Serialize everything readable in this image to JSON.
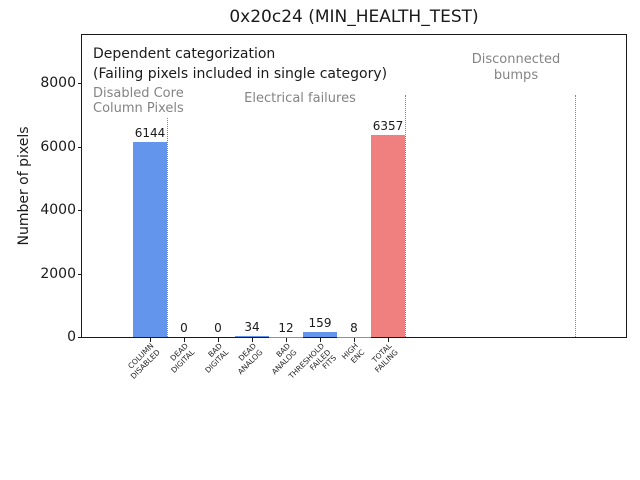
{
  "title": "0x20c24 (MIN_HEALTH_TEST)",
  "ylabel": "Number of pixels",
  "annotations": {
    "dependent": "Dependent categorization\n(Failing pixels included in single category)",
    "regions": [
      {
        "label": "Disabled Core\nColumn Pixels"
      },
      {
        "label": "Electrical failures"
      },
      {
        "label": "Disconnected\nbumps"
      }
    ]
  },
  "colors": {
    "bar_blue": "#6495ED",
    "bar_red": "#F08080",
    "annotation_gray": "#848484",
    "separator_gray": "#848484",
    "axis_text": "#1a1a1a"
  },
  "chart_data": {
    "type": "bar",
    "title": "0x20c24 (MIN_HEALTH_TEST)",
    "xlabel": "",
    "ylabel": "Number of pixels",
    "categories": [
      [
        "COLUMN",
        "DISABLED"
      ],
      [
        "DEAD",
        "DIGITAL"
      ],
      [
        "BAD",
        "DIGITAL"
      ],
      [
        "DEAD",
        "ANALOG"
      ],
      [
        "BAD",
        "ANALOG"
      ],
      [
        "THRESHOLD",
        "FAILED",
        "FITS"
      ],
      [
        "HIGH",
        "ENC"
      ],
      [
        "TOTAL",
        "FAILING"
      ]
    ],
    "values": [
      6144,
      0,
      0,
      34,
      12,
      159,
      8,
      6357
    ],
    "value_labels": [
      "6144",
      "0",
      "0",
      "34",
      "12",
      "159",
      "8",
      "6357"
    ],
    "bar_colors": [
      "#6495ED",
      "#6495ED",
      "#6495ED",
      "#6495ED",
      "#6495ED",
      "#6495ED",
      "#6495ED",
      "#F08080"
    ],
    "yticks": [
      0,
      2000,
      4000,
      6000,
      8000
    ],
    "ylim": [
      0,
      9515
    ],
    "xlim": [
      -2,
      14
    ],
    "bar_width": 1.0,
    "separators_x": [
      0.5,
      7.5,
      12.5
    ],
    "grid": false,
    "legend": null,
    "region_annotations": [
      {
        "text": "Disabled Core\nColumn Pixels",
        "span": [
          -2,
          0.5
        ]
      },
      {
        "text": "Electrical failures",
        "span": [
          0.5,
          7.5
        ]
      },
      {
        "text": "Disconnected\nbumps",
        "span": [
          7.5,
          12.5
        ]
      }
    ]
  }
}
